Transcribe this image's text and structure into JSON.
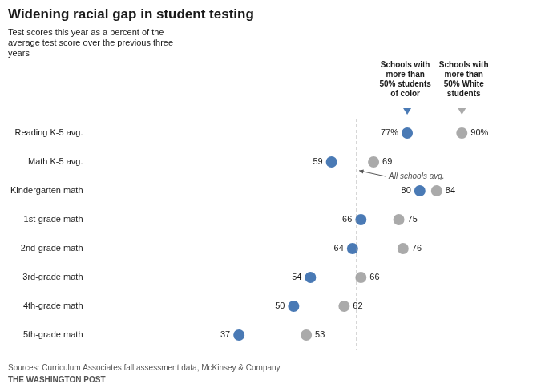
{
  "chart_data": {
    "type": "dot",
    "orientation": "horizontal",
    "title": "Widening racial gap in student testing",
    "subtitle": "Test scores this year as a percent of the\naverage test score over the previous three\nyears",
    "categories": [
      "Reading K-5 avg.",
      "Math K-5 avg.",
      "Kindergarten math",
      "1st-grade math",
      "2nd-grade math",
      "3rd-grade math",
      "4th-grade math",
      "5th-grade math"
    ],
    "series": [
      {
        "name": "Schools with\nmore than\n50% students\nof color",
        "color": "#4a7ab5",
        "values": [
          77,
          59,
          80,
          66,
          64,
          54,
          50,
          37
        ],
        "value_labels": [
          "77%",
          "59",
          "80",
          "66",
          "64",
          "54",
          "50",
          "37"
        ]
      },
      {
        "name": "Schools with\nmore than\n50% White\nstudents",
        "color": "#aaaaaa",
        "values": [
          90,
          69,
          84,
          75,
          76,
          66,
          62,
          53
        ],
        "value_labels": [
          "90%",
          "69",
          "84",
          "75",
          "76",
          "66",
          "62",
          "53"
        ]
      }
    ],
    "xlim": [
      2,
      105
    ],
    "tick_labels": "y",
    "grid": false,
    "legend": "top",
    "data_labels": true,
    "annotations": [
      {
        "text": "All schools avg.",
        "x": 65,
        "line_style": "dashed"
      }
    ],
    "source": "Sources: Curriculum Associates fall assessment data, McKinsey & Company",
    "publisher": "THE WASHINGTON POST"
  }
}
